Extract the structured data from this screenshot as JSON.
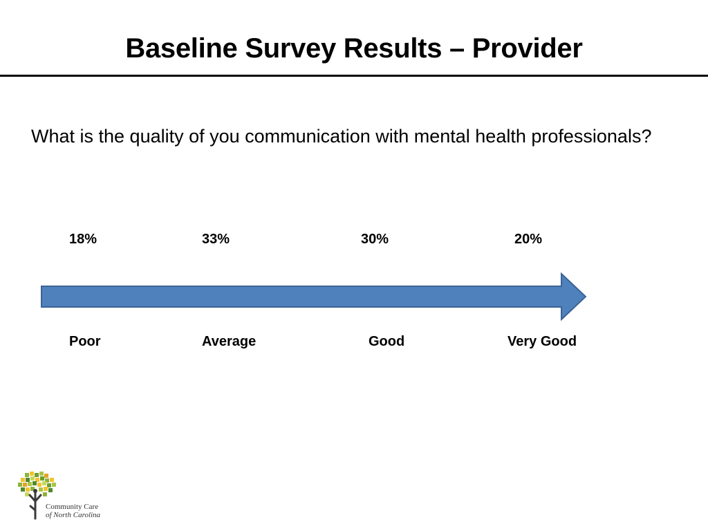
{
  "slide": {
    "title": "Baseline Survey Results – Provider",
    "question": "What is the quality of you communication with mental health professionals?"
  },
  "scale": {
    "items": [
      {
        "label": "Poor",
        "percent": "18%"
      },
      {
        "label": "Average",
        "percent": "33%"
      },
      {
        "label": "Good",
        "percent": "30%"
      },
      {
        "label": "Very Good",
        "percent": "20%"
      }
    ],
    "arrow_color": "#4F81BD",
    "arrow_stroke": "#3A6395"
  },
  "logo": {
    "line1": "Community Care",
    "line2": "of North Carolina"
  }
}
